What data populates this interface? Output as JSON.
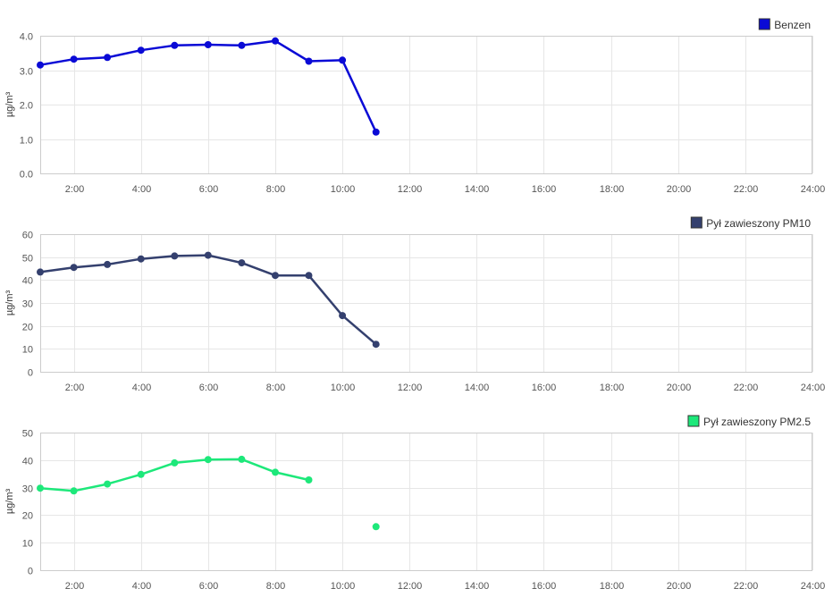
{
  "chart_data": [
    {
      "type": "line",
      "legend": "Benzen",
      "color": "#0a0ad6",
      "ylabel": "µg/m³",
      "yticks": [
        0,
        1,
        2,
        3,
        4
      ],
      "ytick_labels": [
        "0.0",
        "1.0",
        "2.0",
        "3.0",
        "4.0"
      ],
      "ylim": [
        0,
        4
      ],
      "xlim": [
        1,
        24
      ],
      "xticks": [
        "2:00",
        "4:00",
        "6:00",
        "8:00",
        "10:00",
        "12:00",
        "14:00",
        "16:00",
        "18:00",
        "20:00",
        "22:00",
        "24:00"
      ],
      "legend_position": "top-right",
      "grid": true,
      "x": [
        1,
        2,
        3,
        4,
        5,
        6,
        7,
        8,
        9,
        10,
        11
      ],
      "values": [
        3.15,
        3.32,
        3.37,
        3.58,
        3.72,
        3.74,
        3.72,
        3.85,
        3.26,
        3.29,
        1.2
      ]
    },
    {
      "type": "line",
      "legend": "Pył zawieszony PM10",
      "color": "#34406e",
      "ylabel": "µg/m³",
      "yticks": [
        0,
        10,
        20,
        30,
        40,
        50,
        60
      ],
      "ytick_labels": [
        "0",
        "10",
        "20",
        "30",
        "40",
        "50",
        "60"
      ],
      "ylim": [
        0,
        60
      ],
      "xlim": [
        1,
        24
      ],
      "xticks": [
        "2:00",
        "4:00",
        "6:00",
        "8:00",
        "10:00",
        "12:00",
        "14:00",
        "16:00",
        "18:00",
        "20:00",
        "22:00",
        "24:00"
      ],
      "legend_position": "top-right",
      "grid": true,
      "x": [
        1,
        2,
        3,
        4,
        5,
        6,
        7,
        8,
        9,
        10,
        11
      ],
      "values": [
        43.5,
        45.5,
        46.8,
        49.2,
        50.5,
        50.8,
        47.5,
        42.0,
        42.0,
        24.5,
        12.0
      ]
    },
    {
      "type": "line",
      "legend": "Pył zawieszony PM2.5",
      "color": "#1de87a",
      "ylabel": "µg/m³",
      "yticks": [
        0,
        10,
        20,
        30,
        40,
        50
      ],
      "ytick_labels": [
        "0",
        "10",
        "20",
        "30",
        "40",
        "50"
      ],
      "ylim": [
        0,
        50
      ],
      "xlim": [
        1,
        24
      ],
      "xticks": [
        "2:00",
        "4:00",
        "6:00",
        "8:00",
        "10:00",
        "12:00",
        "14:00",
        "16:00",
        "18:00",
        "20:00",
        "22:00",
        "24:00"
      ],
      "legend_position": "top-right",
      "grid": true,
      "x": [
        1,
        2,
        3,
        4,
        5,
        6,
        7,
        8,
        9,
        10,
        11
      ],
      "values": [
        29.8,
        28.8,
        31.3,
        34.8,
        39.0,
        40.2,
        40.3,
        35.6,
        32.8,
        null,
        15.8
      ]
    }
  ]
}
